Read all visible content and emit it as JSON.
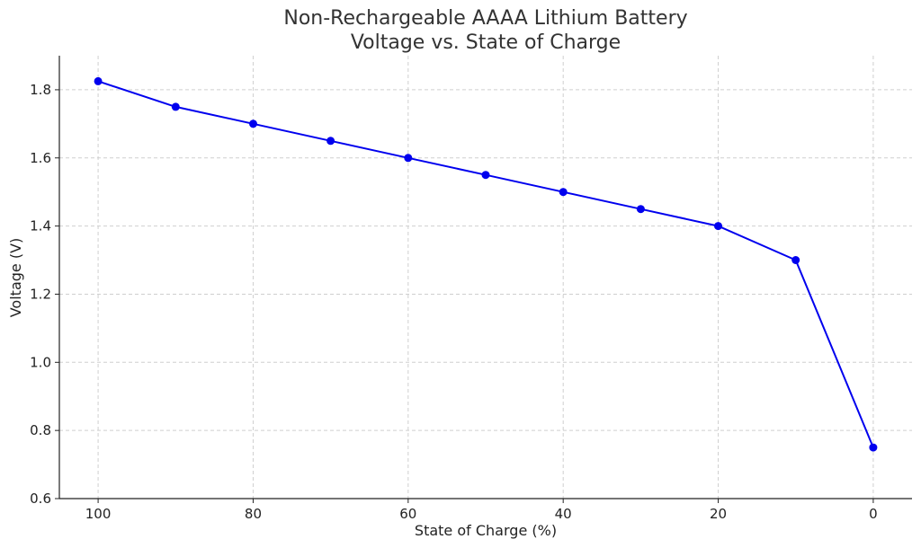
{
  "chart_data": {
    "type": "line",
    "title_line1": "Non-Rechargeable AAAA Lithium Battery",
    "title_line2": "Voltage vs. State of Charge",
    "xlabel": "State of Charge (%)",
    "ylabel": "Voltage (V)",
    "x_inverted": true,
    "xlim": [
      105,
      -5
    ],
    "ylim": [
      0.6,
      1.9
    ],
    "x_ticks": [
      100,
      80,
      60,
      40,
      20,
      0
    ],
    "y_ticks": [
      "0.6",
      "0.8",
      "1.0",
      "1.2",
      "1.4",
      "1.6",
      "1.8"
    ],
    "grid": true,
    "series": [
      {
        "color": "#0000ee",
        "x": [
          100,
          90,
          80,
          70,
          60,
          50,
          40,
          30,
          20,
          10,
          0
        ],
        "values": [
          1.825,
          1.75,
          1.7,
          1.65,
          1.6,
          1.55,
          1.5,
          1.45,
          1.4,
          1.3,
          0.75
        ]
      }
    ]
  }
}
